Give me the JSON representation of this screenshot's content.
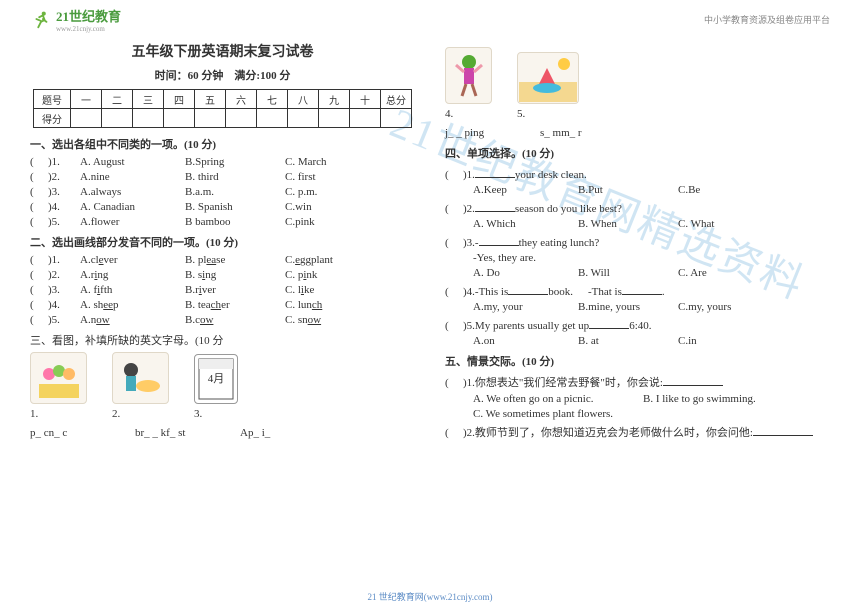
{
  "header": {
    "logo_text": "21世纪教育",
    "logo_sub": "www.21cnjy.com",
    "right_text": "中小学教育资源及组卷应用平台"
  },
  "title": "五年级下册英语期末复习试卷",
  "subtitle_time": "时间：60 分钟",
  "subtitle_score": "满分:100 分",
  "score_table": {
    "row1": [
      "题号",
      "一",
      "二",
      "三",
      "四",
      "五",
      "六",
      "七",
      "八",
      "九",
      "十",
      "总分"
    ],
    "row2_label": "得分"
  },
  "s1": {
    "title": "一、选出各组中不同类的一项。(10 分)",
    "rows": [
      {
        "n": ")1.",
        "a": "A. August",
        "b": "B.Spring",
        "c": "C. March"
      },
      {
        "n": ")2.",
        "a": "A.nine",
        "b": "B. third",
        "c": "C. first"
      },
      {
        "n": ")3.",
        "a": "A.always",
        "b": "B.a.m.",
        "c": "C. p.m."
      },
      {
        "n": ")4.",
        "a": "A. Canadian",
        "b": "B. Spanish",
        "c": "C.win"
      },
      {
        "n": ")5.",
        "a": "A.flower",
        "b": "B bamboo",
        "c": "C.pink"
      }
    ]
  },
  "s2": {
    "title": "二、选出画线部分发音不同的一项。(10 分)",
    "rows": [
      {
        "n": ")1.",
        "a": "A.cl",
        "au": "e",
        "aa": "ver",
        "b": "B. pl",
        "bu": "ea",
        "ba": "se",
        "c": "C.",
        "cu": "e",
        "ca": "ggplant"
      },
      {
        "n": ")2.",
        "a": "A.r",
        "au": "i",
        "aa": "ng",
        "b": "B. s",
        "bu": "i",
        "ba": "ng",
        "c": "C. p",
        "cu": "i",
        "ca": "nk"
      },
      {
        "n": ")3.",
        "a": "A. f",
        "au": "i",
        "aa": "fth",
        "b": "B.r",
        "bu": "i",
        "ba": "ver",
        "c": "C. l",
        "cu": "i",
        "ca": "ke"
      },
      {
        "n": ")4.",
        "a": "A. sh",
        "au": "ee",
        "aa": "p",
        "b": "B. tea",
        "bu": "ch",
        "ba": "er",
        "c": "C. lun",
        "cu": "ch",
        "ca": ""
      },
      {
        "n": ")5.",
        "a": "A.n",
        "au": "ow",
        "aa": "",
        "b": "B.c",
        "bu": "ow",
        "ba": "",
        "c": "C. sn",
        "cu": "ow",
        "ca": ""
      }
    ]
  },
  "s3": {
    "title": "三、看图，补填所缺的英文字母。(10 分",
    "items": [
      {
        "num": "1.",
        "fill": "p_ cn_ c",
        "desc": "picnic"
      },
      {
        "num": "2.",
        "fill": "br_ _ kf_ st",
        "desc": "breakfast"
      },
      {
        "num": "3.",
        "fill": "Ap_ i_",
        "desc": "4月"
      },
      {
        "num": "4.",
        "fill": "j_ _ ping",
        "desc": "jumping"
      },
      {
        "num": "5.",
        "fill": "s_ mm_ r",
        "desc": "summer"
      }
    ]
  },
  "s4": {
    "title": "四、单项选择。(10 分)",
    "q1": {
      "n": ")1.",
      "t1": " your desk clean.",
      "a": "A.Keep",
      "b": "B.Put",
      "c": "C.Be"
    },
    "q2": {
      "n": ")2.",
      "t1": " season do you like best?",
      "a": "A. Which",
      "b": "B. When",
      "c": "C. What"
    },
    "q3": {
      "n": ")3.-",
      "t1": " they eating lunch?",
      "r": "-Yes, they are.",
      "a": "A. Do",
      "b": "B. Will",
      "c": "C. Are"
    },
    "q4": {
      "n": ")4.-This is",
      "t1": " book.",
      "t2": "-That is",
      "t3": " .",
      "a": "A.my, your",
      "b": "B.mine, yours",
      "c": "C.my, yours"
    },
    "q5": {
      "n": ")5.",
      "t1": "My parents usually get up",
      "t2": " 6:40.",
      "a": "A.on",
      "b": "B. at",
      "c": "C.in"
    }
  },
  "s5": {
    "title": "五、情景交际。(10 分)",
    "q1": {
      "n": ")1.",
      "t": "你想表达\"我们经常去野餐\"时，你会说:",
      "a": "A. We often go on a picnic.",
      "b": "B. I like to go swimming.",
      "c": "C. We sometimes plant flowers."
    },
    "q2": {
      "n": ")2.",
      "t": "教师节到了，你想知道迈克会为老师做什么时，你会问他:"
    }
  },
  "footer": "21 世纪教育网(www.21cnjy.com)",
  "watermark": "21世纪教育网精选资料"
}
